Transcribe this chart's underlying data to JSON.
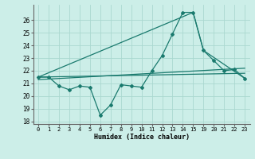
{
  "xlabel": "Humidex (Indice chaleur)",
  "background_color": "#cceee8",
  "grid_color": "#aad8d0",
  "line_color": "#1a7a6e",
  "ylim": [
    17.8,
    27.2
  ],
  "yticks": [
    18,
    19,
    20,
    21,
    22,
    23,
    24,
    25,
    26
  ],
  "x_positions": [
    0,
    1,
    2,
    3,
    4,
    5,
    6,
    7,
    8,
    9,
    10,
    11,
    12,
    13,
    14,
    15,
    16,
    17,
    18,
    19,
    20
  ],
  "x_labels": [
    "0",
    "1",
    "2",
    "3",
    "4",
    "5",
    "6",
    "7",
    "8",
    "9",
    "10",
    "11",
    "12",
    "13",
    "14",
    "15",
    "19",
    "20",
    "21",
    "22",
    "23"
  ],
  "series1_xi": [
    0,
    1,
    2,
    3,
    4,
    5,
    6,
    7,
    8,
    9,
    10,
    11,
    12,
    13,
    14,
    15,
    16,
    17,
    18,
    19,
    20
  ],
  "series1_y": [
    21.5,
    21.5,
    20.8,
    20.5,
    20.8,
    20.7,
    18.5,
    19.3,
    20.9,
    20.8,
    20.7,
    22.0,
    23.2,
    24.9,
    26.6,
    26.6,
    23.6,
    22.8,
    22.0,
    22.1,
    21.4
  ],
  "series2_xi": [
    0,
    15,
    16,
    20
  ],
  "series2_y": [
    21.5,
    26.6,
    23.6,
    21.4
  ],
  "series3_xi": [
    0,
    20
  ],
  "series3_y": [
    21.3,
    22.2
  ],
  "series4_xi": [
    0,
    20
  ],
  "series4_y": [
    21.5,
    21.8
  ]
}
